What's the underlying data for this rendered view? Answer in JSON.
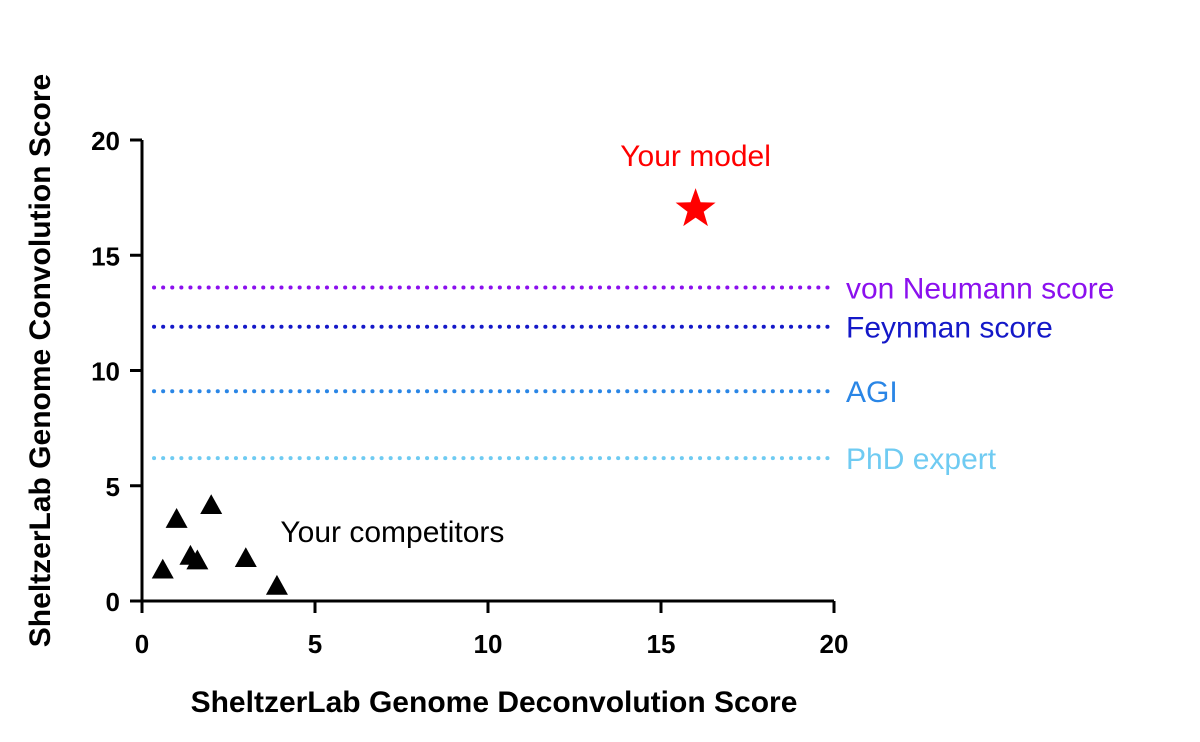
{
  "chart_data": {
    "type": "scatter",
    "xlabel": "SheltzerLab Genome Deconvolution Score",
    "ylabel": "SheltzerLab Genome Convolution Score",
    "xlim": [
      0,
      20
    ],
    "ylim": [
      0,
      20
    ],
    "x_ticks": [
      "0",
      "5",
      "10",
      "15",
      "20"
    ],
    "y_ticks": [
      "0",
      "5",
      "10",
      "15",
      "20"
    ],
    "grid": false,
    "series": [
      {
        "marker": "triangle",
        "color": "#000000",
        "points": [
          {
            "x": 0.6,
            "y": 1.3
          },
          {
            "x": 1.0,
            "y": 3.5
          },
          {
            "x": 1.4,
            "y": 1.9
          },
          {
            "x": 1.6,
            "y": 1.7
          },
          {
            "x": 2.0,
            "y": 4.1
          },
          {
            "x": 3.0,
            "y": 1.8
          },
          {
            "x": 3.9,
            "y": 0.6
          }
        ]
      },
      {
        "marker": "star",
        "color": "#ff0000",
        "points": [
          {
            "x": 16.0,
            "y": 17.0
          }
        ]
      }
    ],
    "reference_lines": [
      {
        "label": "von Neumann score",
        "y": 13.6,
        "color": "#8b10ee"
      },
      {
        "label": "Feynman score",
        "y": 11.9,
        "color": "#1418c8"
      },
      {
        "label": "AGI",
        "y": 9.1,
        "color": "#2a86e6"
      },
      {
        "label": "PhD expert",
        "y": 6.2,
        "color": "#6fcbf2"
      }
    ],
    "annotations": [
      {
        "text": "Your model",
        "x": 16.0,
        "y": 19.3,
        "color": "#ff0000"
      },
      {
        "text": "Your competitors",
        "x": 4.0,
        "y": 3.0,
        "color": "#000000"
      }
    ]
  }
}
